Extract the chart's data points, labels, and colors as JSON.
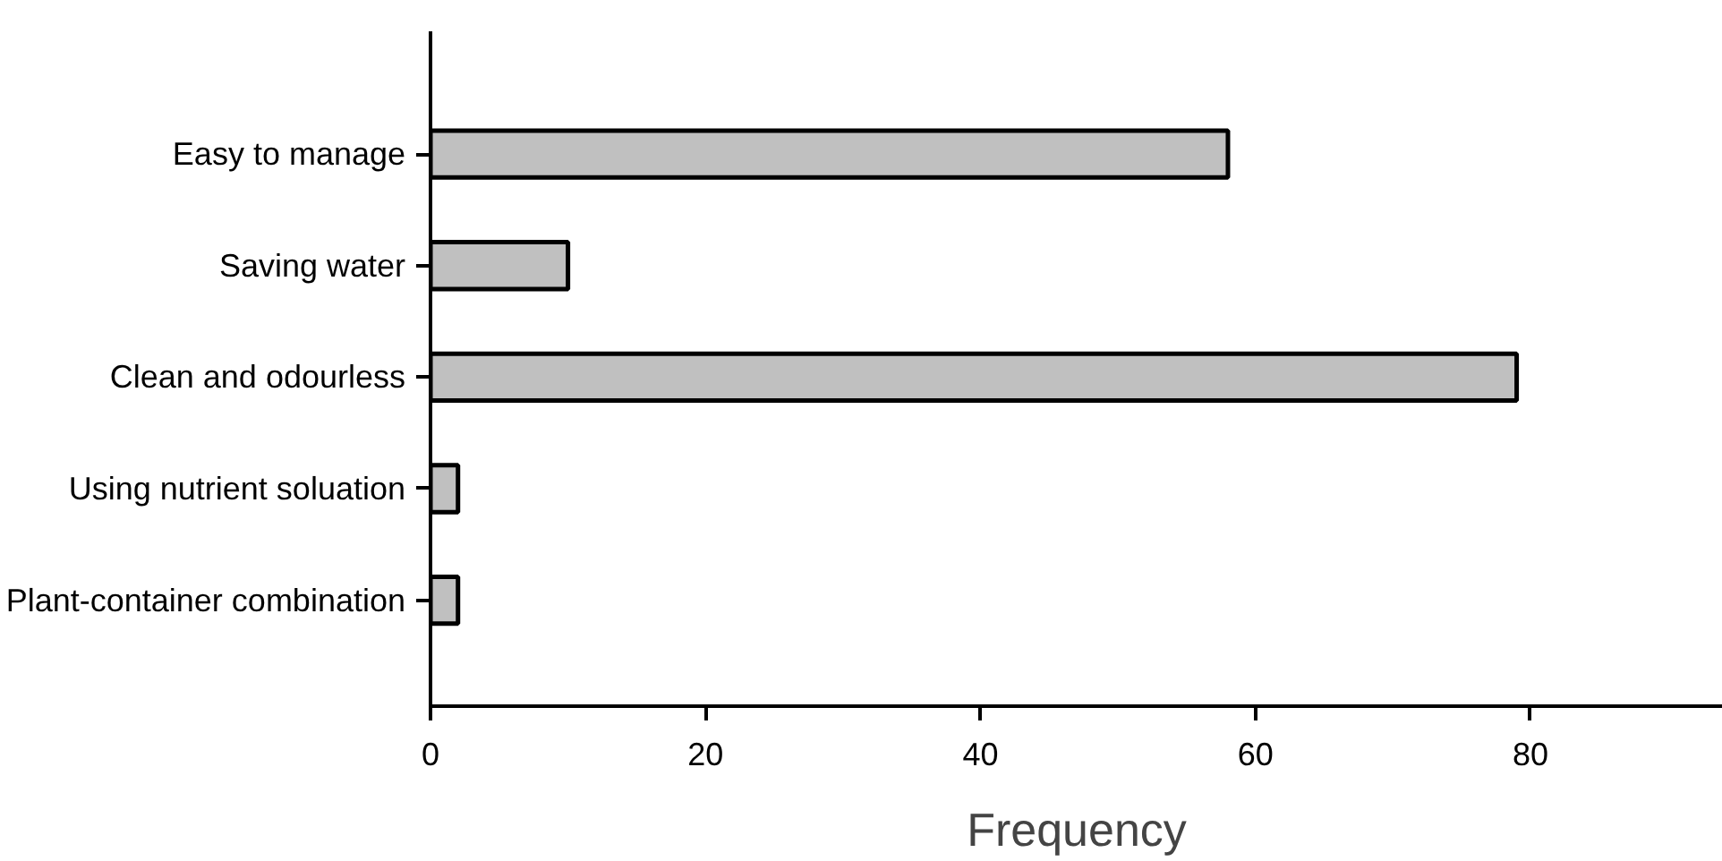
{
  "chart_data": {
    "type": "bar",
    "orientation": "horizontal",
    "xlabel": "Frequency",
    "categories": [
      "Easy to manage",
      "Saving water",
      "Clean and odourless",
      "Using nutrient soluation",
      "Plant-container combination"
    ],
    "values": [
      58,
      10,
      79,
      2,
      2
    ],
    "color": "#c0c0c0",
    "xlim": [
      0,
      94
    ],
    "xticks": [
      0,
      20,
      40,
      60,
      80
    ],
    "grid": false
  }
}
